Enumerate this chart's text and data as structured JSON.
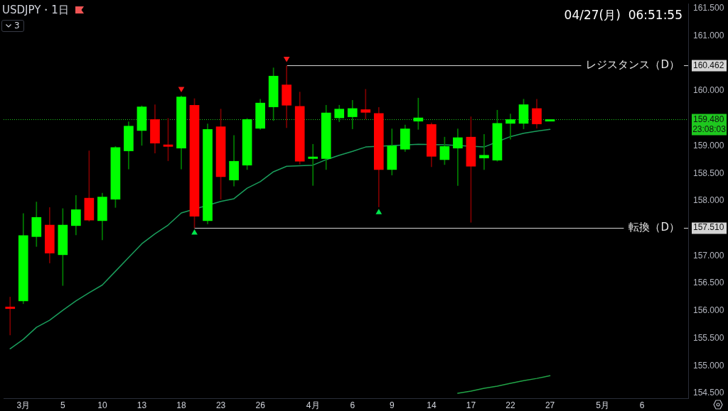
{
  "chart_data": {
    "type": "candlestick",
    "title": "USDJPY・1日",
    "subtitle": "04/27(月)  06:51:55",
    "categories": [
      null,
      "3月",
      null,
      null,
      "5",
      null,
      null,
      "10",
      null,
      null,
      "13",
      null,
      null,
      "18",
      null,
      null,
      "23",
      null,
      null,
      "26",
      null,
      null,
      null,
      "4月",
      null,
      null,
      "6",
      null,
      null,
      "9",
      null,
      null,
      "14",
      null,
      null,
      "17",
      null,
      null,
      "22",
      null,
      null,
      "27",
      null,
      null,
      null,
      "5月",
      null,
      null,
      "6",
      null,
      null,
      null
    ],
    "ohlc": [
      [
        156.07,
        156.25,
        155.56,
        156.04
      ],
      [
        156.18,
        157.77,
        156.13,
        157.37
      ],
      [
        157.35,
        157.98,
        157.17,
        157.7
      ],
      [
        157.56,
        157.88,
        156.87,
        157.05
      ],
      [
        157.02,
        157.86,
        156.46,
        157.56
      ],
      [
        157.55,
        158.1,
        157.38,
        157.84
      ],
      [
        158.05,
        158.91,
        157.63,
        157.65
      ],
      [
        157.64,
        158.14,
        157.29,
        158.07
      ],
      [
        158.03,
        158.99,
        157.88,
        158.97
      ],
      [
        158.91,
        159.44,
        158.58,
        159.36
      ],
      [
        159.28,
        159.73,
        159.01,
        159.71
      ],
      [
        159.48,
        159.75,
        158.87,
        159.05
      ],
      [
        159.02,
        159.5,
        158.73,
        158.99
      ],
      [
        158.96,
        159.91,
        158.58,
        159.89
      ],
      [
        159.74,
        159.86,
        157.51,
        157.72
      ],
      [
        157.64,
        159.4,
        157.58,
        159.3
      ],
      [
        159.35,
        159.67,
        158.03,
        158.44
      ],
      [
        158.38,
        159.19,
        158.27,
        158.72
      ],
      [
        158.65,
        159.5,
        158.57,
        159.48
      ],
      [
        159.32,
        159.85,
        159.3,
        159.78
      ],
      [
        159.71,
        160.42,
        159.46,
        160.27
      ],
      [
        160.11,
        160.462,
        159.33,
        159.74
      ],
      [
        159.72,
        159.98,
        158.67,
        158.72
      ],
      [
        158.77,
        159.03,
        158.28,
        158.8
      ],
      [
        158.77,
        159.74,
        158.57,
        159.6
      ],
      [
        159.51,
        159.74,
        159.44,
        159.67
      ],
      [
        159.53,
        159.83,
        159.31,
        159.68
      ],
      [
        159.66,
        160.03,
        159.49,
        159.61
      ],
      [
        159.59,
        159.7,
        157.89,
        158.57
      ],
      [
        158.57,
        159.31,
        158.47,
        159.0
      ],
      [
        158.94,
        159.38,
        158.9,
        159.31
      ],
      [
        159.45,
        159.87,
        159.3,
        159.51
      ],
      [
        159.39,
        159.42,
        158.62,
        158.81
      ],
      [
        158.75,
        159.16,
        158.66,
        158.99
      ],
      [
        158.96,
        159.31,
        158.28,
        159.15
      ],
      [
        159.16,
        159.53,
        157.61,
        158.63
      ],
      [
        158.78,
        159.21,
        158.57,
        158.83
      ],
      [
        158.74,
        159.65,
        158.72,
        159.41
      ],
      [
        159.41,
        159.58,
        159.12,
        159.48
      ],
      [
        159.41,
        159.85,
        159.31,
        159.75
      ],
      [
        159.68,
        159.85,
        159.32,
        159.4
      ],
      [
        159.45,
        159.48,
        159.45,
        159.48
      ],
      null,
      null,
      null,
      null,
      null,
      null,
      null,
      null,
      null,
      null
    ],
    "colors": [
      "#ff0000",
      "#00ff00",
      "#00ff00",
      "#ff0000",
      "#00ff00",
      "#00ff00",
      "#ff0000",
      "#00ff00",
      "#00ff00",
      "#00ff00",
      "#00ff00",
      "#ff0000",
      "#ff0000",
      "#00ff00",
      "#ff0000",
      "#00ff00",
      "#ff0000",
      "#00ff00",
      "#00ff00",
      "#00ff00",
      "#00ff00",
      "#ff0000",
      "#ff0000",
      "#00ff00",
      "#00ff00",
      "#00ff00",
      "#00ff00",
      "#ff0000",
      "#ff0000",
      "#00ff00",
      "#00ff00",
      "#00ff00",
      "#ff0000",
      "#00ff00",
      "#00ff00",
      "#ff0000",
      "#00ff00",
      "#00ff00",
      "#00ff00",
      "#00ff00",
      "#ff0000",
      "#00ff00",
      null,
      null,
      null,
      null,
      null,
      null,
      null,
      null,
      null,
      null
    ],
    "series": [
      {
        "type": "line",
        "color": "#1a9e5c",
        "marker": "none",
        "values": [
          155.31,
          155.48,
          155.7,
          155.83,
          156.01,
          156.18,
          156.33,
          156.47,
          156.72,
          156.97,
          157.22,
          157.4,
          157.56,
          157.78,
          null,
          null,
          157.99,
          158.04,
          158.23,
          158.35,
          158.53,
          158.63,
          158.64,
          158.65,
          158.75,
          158.83,
          158.9,
          158.98,
          null,
          null,
          null,
          159.03,
          null,
          159.02,
          null,
          null,
          158.98,
          null,
          159.17,
          159.23,
          159.27,
          159.3,
          null,
          null,
          null,
          null,
          null,
          null,
          null,
          null,
          null,
          null
        ]
      },
      {
        "type": "line",
        "color": "#21a447",
        "marker": "none",
        "values": [
          null,
          null,
          null,
          null,
          null,
          null,
          null,
          null,
          null,
          null,
          null,
          null,
          null,
          null,
          null,
          null,
          null,
          null,
          null,
          null,
          null,
          null,
          null,
          null,
          null,
          null,
          null,
          null,
          null,
          null,
          null,
          null,
          null,
          null,
          154.5,
          154.54,
          154.59,
          154.63,
          154.68,
          154.73,
          154.77,
          154.82,
          null,
          null,
          null,
          null,
          null,
          null,
          null,
          null,
          null,
          null
        ]
      },
      {
        "type": "scatter",
        "color": "#ff1a1a",
        "marker": "triangle",
        "values": [
          null,
          null,
          null,
          null,
          null,
          null,
          null,
          null,
          null,
          null,
          null,
          null,
          null,
          160.04,
          null,
          null,
          null,
          null,
          null,
          null,
          null,
          160.59,
          null,
          null,
          null,
          null,
          null,
          null,
          null,
          null,
          null,
          null,
          null,
          null,
          null,
          null,
          null,
          null,
          null,
          null,
          null,
          null,
          null,
          null,
          null,
          null,
          null,
          null,
          null,
          null,
          null,
          null
        ]
      },
      {
        "type": "scatter",
        "color": "#00e64d",
        "marker": "triangle",
        "values": [
          null,
          null,
          null,
          null,
          null,
          null,
          null,
          null,
          null,
          null,
          null,
          null,
          null,
          null,
          157.42,
          null,
          null,
          null,
          null,
          null,
          null,
          null,
          null,
          null,
          null,
          null,
          null,
          null,
          157.79,
          null,
          null,
          null,
          null,
          null,
          null,
          null,
          null,
          null,
          null,
          null,
          null,
          null,
          null,
          null,
          null,
          null,
          null,
          null,
          null,
          null,
          null,
          null
        ]
      }
    ],
    "ylim": [
      154.41,
      161.59
    ],
    "yticks": [
      {
        "value": 154.5,
        "label": "154.500"
      },
      {
        "value": 155,
        "label": "155.000"
      },
      {
        "value": 155.5,
        "label": "155.500"
      },
      {
        "value": 156,
        "label": "156.000"
      },
      {
        "value": 156.5,
        "label": "156.500"
      },
      {
        "value": 157,
        "label": "157.000"
      },
      {
        "value": 157.51,
        "label": "157.510"
      },
      {
        "value": 158,
        "label": "158.000"
      },
      {
        "value": 158.5,
        "label": "158.500"
      },
      {
        "value": 159,
        "label": "159.000"
      },
      {
        "value": 159.48,
        "label": "159.480"
      },
      {
        "value": 160,
        "label": "160.000"
      },
      {
        "value": 160.462,
        "label": "160.462"
      },
      {
        "value": 161,
        "label": "161.000"
      },
      {
        "value": 161.5,
        "label": "161.500"
      }
    ],
    "ref_lines": [
      {
        "axis": "y",
        "value": 160.462,
        "label": "レジスタンス（D）",
        "color": "#d4d4d4"
      },
      {
        "axis": "y",
        "value": 157.51,
        "label": "転換（D）",
        "color": "#d4d4d4"
      },
      {
        "axis": "y",
        "value": 159.48,
        "color": "#1ec81e",
        "line_style": "dotted"
      }
    ],
    "annotations": [
      "3",
      "23:08:03"
    ],
    "grid": false,
    "legend": false
  }
}
